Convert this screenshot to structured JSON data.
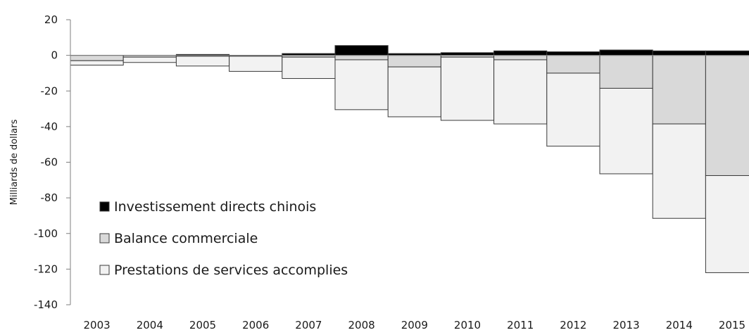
{
  "chart_data": {
    "type": "bar",
    "stacked": true,
    "title": "",
    "xlabel": "",
    "ylabel": "Milliards de dollars",
    "ylim": [
      -140,
      20
    ],
    "yticks": [
      20,
      0,
      -20,
      -40,
      -60,
      -80,
      -100,
      -120,
      -140
    ],
    "grid": false,
    "legend_position": "bottom-left",
    "categories": [
      "2003",
      "2004",
      "2005",
      "2006",
      "2007",
      "2008",
      "2009",
      "2010",
      "2011",
      "2012",
      "2013",
      "2014",
      "2015"
    ],
    "series": [
      {
        "name": "Investissement directs chinois",
        "color": "#000000",
        "values": [
          0,
          0,
          0.5,
          0,
          1,
          5.5,
          1,
          1.5,
          2.5,
          2,
          3,
          2.5,
          2.5
        ]
      },
      {
        "name": "Balance commerciale",
        "color": "#d9d9d9",
        "values": [
          -3,
          -1,
          -0.5,
          -0.5,
          -1,
          -2.5,
          -6.5,
          -1,
          -2.5,
          -10,
          -18.5,
          -38.5,
          -67.5
        ]
      },
      {
        "name": "Prestations de services accomplies",
        "color": "#f2f2f2",
        "values": [
          -2.5,
          -3,
          -5.5,
          -8.5,
          -12,
          -28,
          -28,
          -35.5,
          -36,
          -41,
          -48,
          -53,
          -54.5
        ]
      }
    ]
  }
}
